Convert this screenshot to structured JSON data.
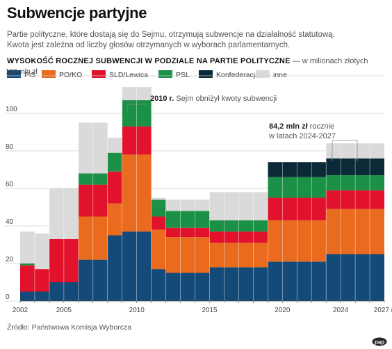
{
  "header": {
    "title": "Subwencje partyjne",
    "subtitle_line1": "Partie polityczne, które dostają się do Sejmu, otrzymują subwencje na działalność statutową.",
    "subtitle_line2": "Kwota jest zależna od liczby głosów otrzymanych w wyborach parlamentarnych.",
    "chart_heading": "WYSOKOŚĆ ROCZNEJ SUBWENCJI W PODZIALE NA PARTIE POLITYCZNE",
    "chart_unit": "— w milionach złotych"
  },
  "legend": [
    {
      "label": "PiS",
      "color": "#134a78"
    },
    {
      "label": "PO/KO",
      "color": "#ea6a1e"
    },
    {
      "label": "SLD/Lewica",
      "color": "#e2122c"
    },
    {
      "label": "PSL",
      "color": "#1a9147"
    },
    {
      "label": "Konfederacja",
      "color": "#0b2a38"
    },
    {
      "label": "inne",
      "color": "#dadada"
    }
  ],
  "chart_data": {
    "type": "bar",
    "stacked": true,
    "ylabel": "mln zł",
    "ylim": [
      0,
      120
    ],
    "yticks": [
      0,
      20,
      40,
      60,
      80,
      100,
      120
    ],
    "ytick_labels": [
      "0",
      "20",
      "40",
      "60",
      "80",
      "100",
      "120 mln zł"
    ],
    "xtick_labels": [
      "2002",
      "2005",
      "2010",
      "2015",
      "2020",
      "2024",
      "2027 r."
    ],
    "grid": true,
    "series_order": [
      "PiS",
      "PO/KO",
      "SLD/Lewica",
      "PSL",
      "Konfederacja",
      "inne"
    ],
    "periods": [
      {
        "years": [
          2002,
          2003
        ],
        "values": {
          "PiS": 5,
          "PO/KO": 0,
          "SLD/Lewica": 14,
          "PSL": 1,
          "Konfederacja": 0,
          "inne": 17
        }
      },
      {
        "years": [
          2003,
          2004
        ],
        "values": {
          "PiS": 5,
          "PO/KO": 0,
          "SLD/Lewica": 12,
          "PSL": 0,
          "Konfederacja": 0,
          "inne": 19
        }
      },
      {
        "years": [
          2004,
          2006
        ],
        "values": {
          "PiS": 10,
          "PO/KO": 0,
          "SLD/Lewica": 23,
          "PSL": 0,
          "Konfederacja": 0,
          "inne": 27
        }
      },
      {
        "years": [
          2006,
          2008
        ],
        "values": {
          "PiS": 22,
          "PO/KO": 23,
          "SLD/Lewica": 17,
          "PSL": 6,
          "Konfederacja": 0,
          "inne": 27
        }
      },
      {
        "years": [
          2008,
          2009
        ],
        "values": {
          "PiS": 35,
          "PO/KO": 17,
          "SLD/Lewica": 17,
          "PSL": 10,
          "Konfederacja": 0,
          "inne": 8
        }
      },
      {
        "years": [
          2009,
          2011
        ],
        "values": {
          "PiS": 37,
          "PO/KO": 41,
          "SLD/Lewica": 15,
          "PSL": 14,
          "Konfederacja": 0,
          "inne": 7
        }
      },
      {
        "years": [
          2011,
          2012
        ],
        "values": {
          "PiS": 17,
          "PO/KO": 21,
          "SLD/Lewica": 7,
          "PSL": 9,
          "Konfederacja": 0,
          "inne": 1
        }
      },
      {
        "years": [
          2012,
          2015
        ],
        "values": {
          "PiS": 15,
          "PO/KO": 19,
          "SLD/Lewica": 5,
          "PSL": 9,
          "Konfederacja": 0,
          "inne": 6
        }
      },
      {
        "years": [
          2015,
          2019
        ],
        "values": {
          "PiS": 18,
          "PO/KO": 13,
          "SLD/Lewica": 6,
          "PSL": 6,
          "Konfederacja": 0,
          "inne": 15
        }
      },
      {
        "years": [
          2019,
          2023
        ],
        "values": {
          "PiS": 21,
          "PO/KO": 22,
          "SLD/Lewica": 12,
          "PSL": 11,
          "Konfederacja": 8,
          "inne": 0
        }
      },
      {
        "years": [
          2023,
          2027
        ],
        "values": {
          "PiS": 25,
          "PO/KO": 24,
          "SLD/Lewica": 10,
          "PSL": 8,
          "Konfederacja": 9,
          "inne": 8
        }
      }
    ],
    "annotations": [
      {
        "bold": "2010 r.",
        "text": "Sejm obniżył kwoty subwencji"
      },
      {
        "bold": "84,2 mln zł",
        "text": "rocznie",
        "text2": "w latach 2024-2027"
      }
    ]
  },
  "footer": {
    "source": "Źródło: Państwowa Komisja Wyborcza",
    "logo_text": "pap"
  }
}
